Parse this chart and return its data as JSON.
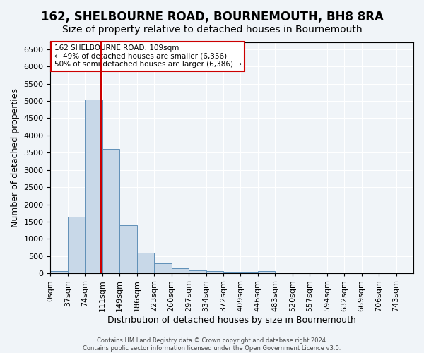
{
  "title": "162, SHELBOURNE ROAD, BOURNEMOUTH, BH8 8RA",
  "subtitle": "Size of property relative to detached houses in Bournemouth",
  "xlabel": "Distribution of detached houses by size in Bournemouth",
  "ylabel": "Number of detached properties",
  "bin_edges": [
    0,
    37,
    74,
    111,
    148,
    185,
    222,
    259,
    296,
    333,
    370,
    407,
    444,
    481,
    518,
    555,
    592,
    629,
    666,
    703,
    740
  ],
  "bin_heights": [
    75,
    1650,
    5050,
    3600,
    1400,
    600,
    300,
    140,
    85,
    60,
    50,
    50,
    60,
    5,
    5,
    5,
    5,
    5,
    5,
    5
  ],
  "bar_color": "#c8d8e8",
  "bar_edge_color": "#6090b8",
  "vline_x": 109,
  "vline_color": "#cc0000",
  "ylim": [
    0,
    6700
  ],
  "yticks": [
    0,
    500,
    1000,
    1500,
    2000,
    2500,
    3000,
    3500,
    4000,
    4500,
    5000,
    5500,
    6000,
    6500
  ],
  "xtick_labels": [
    "0sqm",
    "37sqm",
    "74sqm",
    "111sqm",
    "149sqm",
    "186sqm",
    "223sqm",
    "260sqm",
    "297sqm",
    "334sqm",
    "372sqm",
    "409sqm",
    "446sqm",
    "483sqm",
    "520sqm",
    "557sqm",
    "594sqm",
    "632sqm",
    "669sqm",
    "706sqm",
    "743sqm"
  ],
  "annotation_text": "162 SHELBOURNE ROAD: 109sqm\n← 49% of detached houses are smaller (6,356)\n50% of semi-detached houses are larger (6,386) →",
  "annotation_box_color": "#ffffff",
  "annotation_box_edgecolor": "#cc0000",
  "footer1": "Contains HM Land Registry data © Crown copyright and database right 2024.",
  "footer2": "Contains public sector information licensed under the Open Government Licence v3.0.",
  "bg_color": "#f0f4f8",
  "grid_color": "#ffffff",
  "title_fontsize": 12,
  "subtitle_fontsize": 10,
  "axis_label_fontsize": 9,
  "tick_fontsize": 8
}
